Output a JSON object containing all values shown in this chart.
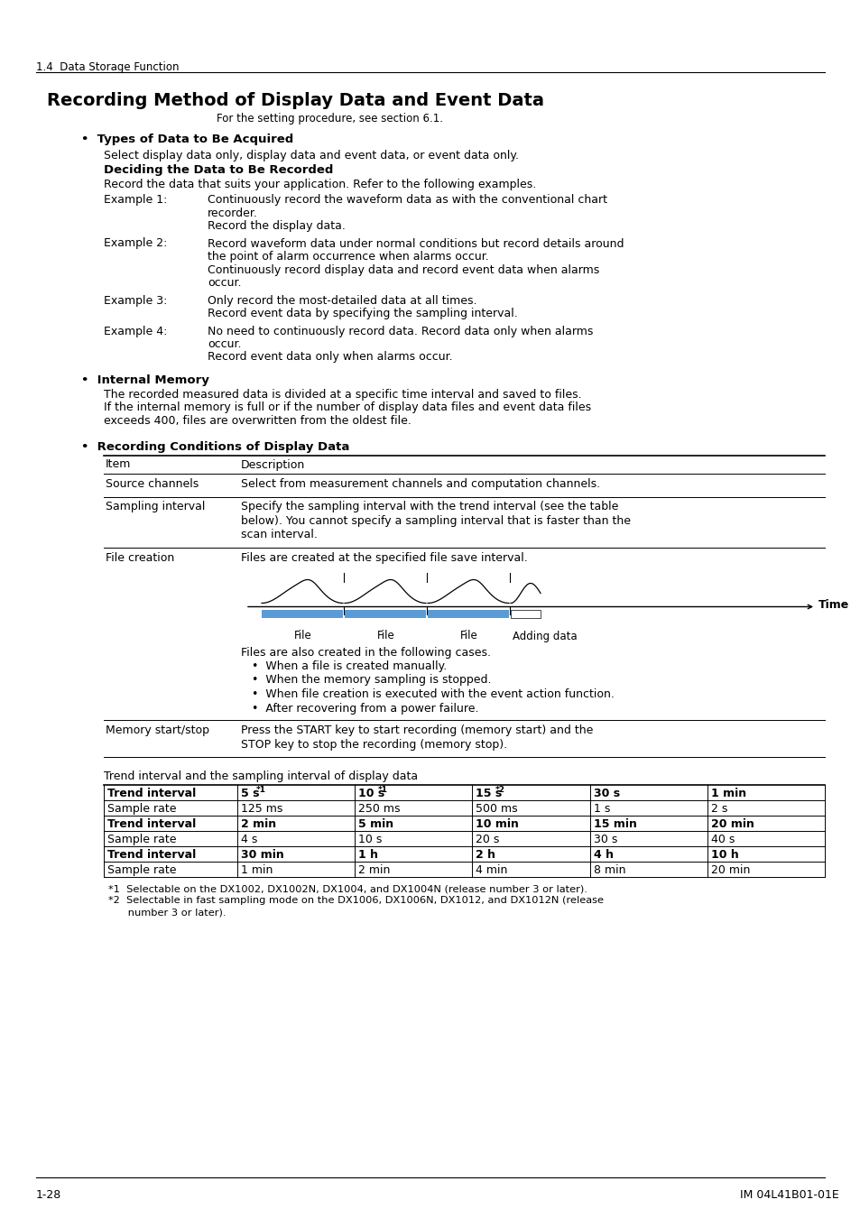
{
  "page_header": "1.4  Data Storage Function",
  "main_title": "Recording Method of Display Data and Event Data",
  "subtitle": "For the setting procedure, see section 6.1.",
  "section1_bullet": "Types of Data to Be Acquired",
  "section1_text": "Select display data only, display data and event data, or event data only.",
  "section1_sub_title": "Deciding the Data to Be Recorded",
  "section1_sub_text": "Record the data that suits your application. Refer to the following examples.",
  "examples": [
    {
      "label": "Example 1:",
      "lines": [
        "Continuously record the waveform data as with the conventional chart",
        "recorder.",
        "Record the display data."
      ]
    },
    {
      "label": "Example 2:",
      "lines": [
        "Record waveform data under normal conditions but record details around",
        "the point of alarm occurrence when alarms occur.",
        "Continuously record display data and record event data when alarms",
        "occur."
      ]
    },
    {
      "label": "Example 3:",
      "lines": [
        "Only record the most-detailed data at all times.",
        "Record event data by specifying the sampling interval."
      ]
    },
    {
      "label": "Example 4:",
      "lines": [
        "No need to continuously record data. Record data only when alarms",
        "occur.",
        "Record event data only when alarms occur."
      ]
    }
  ],
  "section2_bullet": "Internal Memory",
  "section2_lines": [
    "The recorded measured data is divided at a specific time interval and saved to files.",
    "If the internal memory is full or if the number of display data files and event data files",
    "exceeds 400, files are overwritten from the oldest file."
  ],
  "section3_bullet": "Recording Conditions of Display Data",
  "table_headers": [
    "Item",
    "Description"
  ],
  "table_rows": [
    {
      "item": "Source channels",
      "desc": [
        "Select from measurement channels and computation channels."
      ]
    },
    {
      "item": "Sampling interval",
      "desc": [
        "Specify the sampling interval with the trend interval (see the table",
        "below). You cannot specify a sampling interval that is faster than the",
        "scan interval."
      ]
    },
    {
      "item": "File creation",
      "desc_before_diagram": [
        "Files are created at the specified file save interval."
      ],
      "has_diagram": true,
      "desc_after_diagram": [
        "Files are also created in the following cases.",
        "•  When a file is created manually.",
        "•  When the memory sampling is stopped.",
        "•  When file creation is executed with the event action function.",
        "•  After recovering from a power failure."
      ]
    },
    {
      "item": "Memory start/stop",
      "desc": [
        "Press the START key to start recording (memory start) and the",
        "STOP key to stop the recording (memory stop)."
      ]
    }
  ],
  "trend_table_title": "Trend interval and the sampling interval of display data",
  "trend_table": {
    "rows": [
      [
        "Trend interval",
        "5 s *1",
        "10 s *1",
        "15 s *2",
        "30 s",
        "1 min"
      ],
      [
        "Sample rate",
        "125 ms",
        "250 ms",
        "500 ms",
        "1 s",
        "2 s"
      ],
      [
        "Trend interval",
        "2 min",
        "5 min",
        "10 min",
        "15 min",
        "20 min"
      ],
      [
        "Sample rate",
        "4 s",
        "10 s",
        "20 s",
        "30 s",
        "40 s"
      ],
      [
        "Trend interval",
        "30 min",
        "1 h",
        "2 h",
        "4 h",
        "10 h"
      ],
      [
        "Sample rate",
        "1 min",
        "2 min",
        "4 min",
        "8 min",
        "20 min"
      ]
    ]
  },
  "trend_table_superscripts": [
    [
      false,
      true,
      true,
      true,
      false,
      false
    ],
    [
      false,
      false,
      false,
      false,
      false,
      false
    ],
    [
      false,
      false,
      false,
      false,
      false,
      false
    ],
    [
      false,
      false,
      false,
      false,
      false,
      false
    ],
    [
      false,
      false,
      false,
      false,
      false,
      false
    ],
    [
      false,
      false,
      false,
      false,
      false,
      false
    ]
  ],
  "footnotes": [
    "*1  Selectable on the DX1002, DX1002N, DX1004, and DX1004N (release number 3 or later).",
    "*2  Selectable in fast sampling mode on the DX1006, DX1006N, DX1012, and DX1012N (release",
    "      number 3 or later)."
  ],
  "page_footer_left": "1-28",
  "page_footer_right": "IM 04L41B01-01E",
  "bg_color": "#ffffff",
  "text_color": "#000000",
  "diagram_bar_color": "#5B9BD5"
}
